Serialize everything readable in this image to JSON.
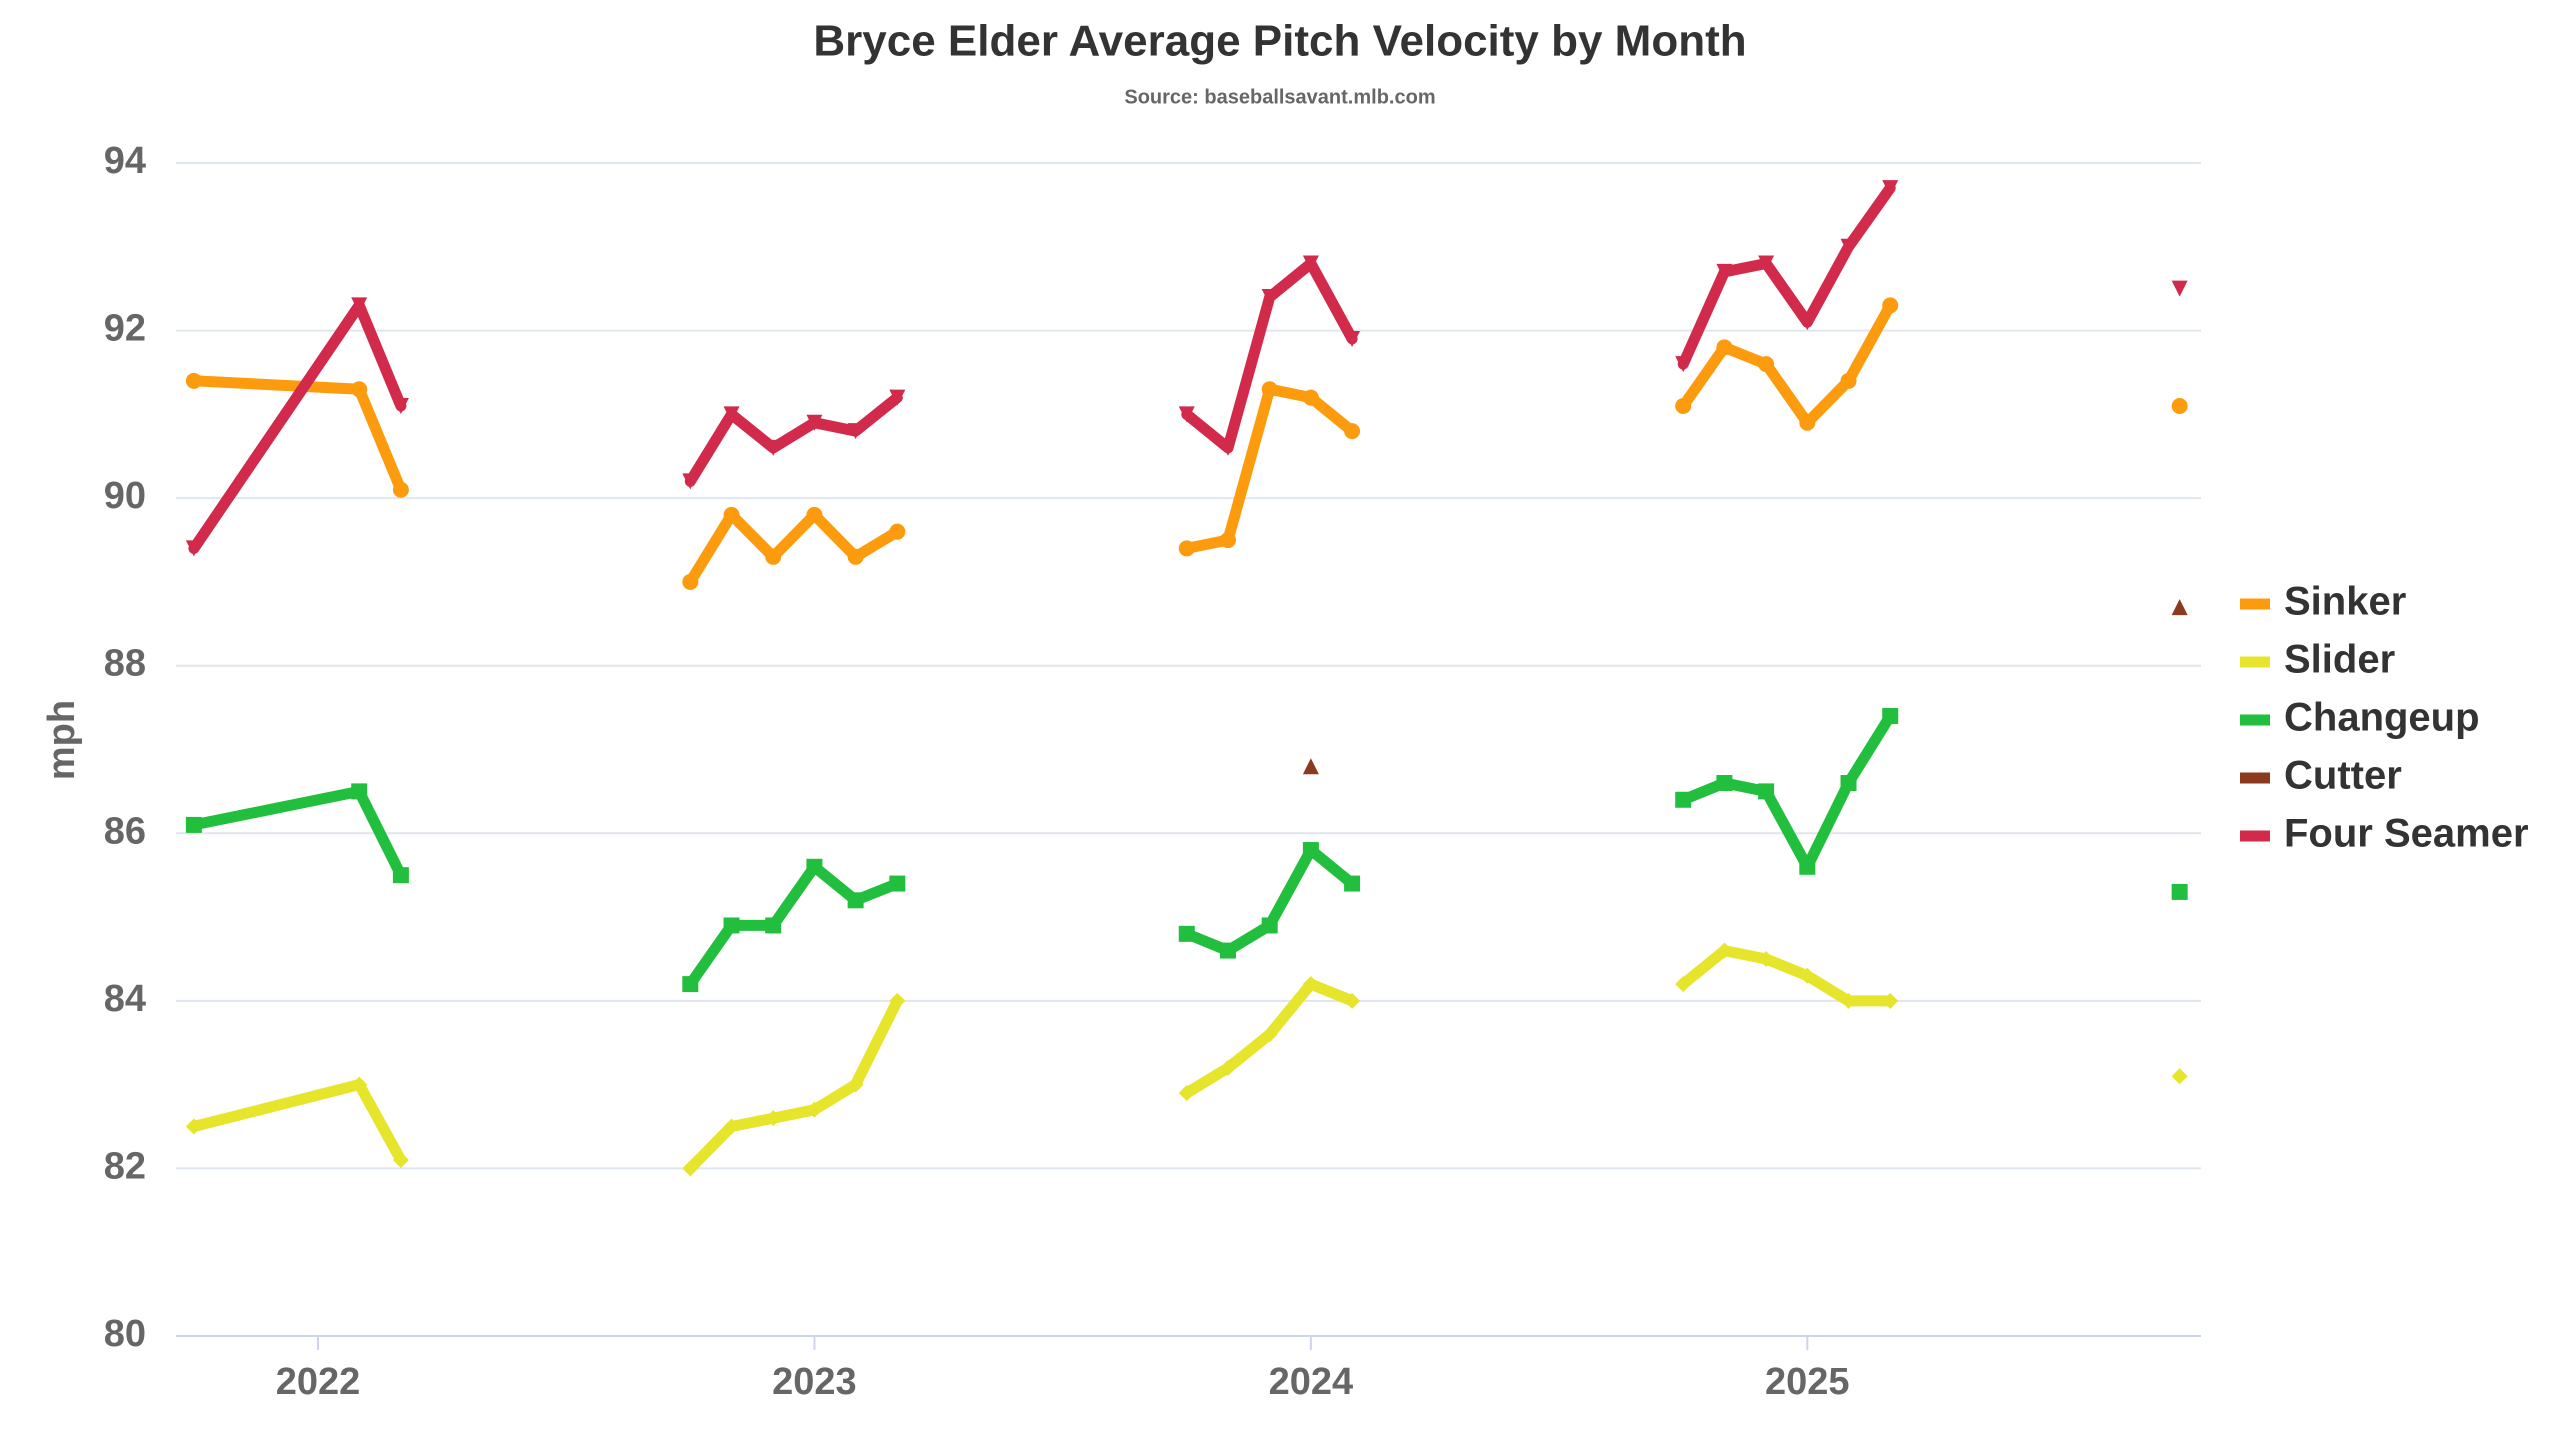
{
  "chart_data": {
    "type": "line",
    "title": "Bryce Elder Average Pitch Velocity by Month",
    "subtitle": "Source: baseballsavant.mlb.com",
    "y_label": "mph",
    "x": [
      2021.75,
      2022.083,
      2022.167,
      2022.75,
      2022.833,
      2022.917,
      2023,
      2023.083,
      2023.167,
      2023.75,
      2023.833,
      2023.917,
      2024,
      2024.083,
      2024.75,
      2024.833,
      2024.917,
      2025,
      2025.083,
      2025.167,
      2025.75
    ],
    "xlim": [
      2021.714,
      2025.793
    ],
    "xticks": [
      2022,
      2023,
      2024,
      2025
    ],
    "ylim": [
      80,
      94
    ],
    "yticks": [
      80,
      82,
      84,
      86,
      88,
      90,
      92,
      94
    ],
    "grid": true,
    "legend": "right",
    "series": [
      {
        "name": "Sinker",
        "color": "#fb9b0d",
        "marker": "circle",
        "values": [
          91.4,
          91.3,
          90.1,
          89.0,
          89.8,
          89.3,
          89.8,
          89.3,
          89.6,
          89.4,
          89.5,
          91.3,
          91.2,
          90.8,
          91.1,
          91.8,
          91.6,
          90.9,
          91.4,
          92.3,
          91.1
        ]
      },
      {
        "name": "Slider",
        "color": "#e7e42c",
        "marker": "diamond",
        "values": [
          82.5,
          83.0,
          82.1,
          82.0,
          82.5,
          82.6,
          82.7,
          83.0,
          84.0,
          82.9,
          83.2,
          83.6,
          84.2,
          84.0,
          84.2,
          84.6,
          84.5,
          84.3,
          84.0,
          84.0,
          83.1
        ]
      },
      {
        "name": "Changeup",
        "color": "#22bf3e",
        "marker": "square",
        "values": [
          86.1,
          86.5,
          85.5,
          84.2,
          84.9,
          84.9,
          85.6,
          85.2,
          85.4,
          84.8,
          84.6,
          84.9,
          85.8,
          85.4,
          86.4,
          86.6,
          86.5,
          85.6,
          86.6,
          87.4,
          85.3
        ]
      },
      {
        "name": "Cutter",
        "color": "#8b3a1f",
        "marker": "triangle",
        "values": [
          null,
          null,
          null,
          null,
          null,
          null,
          null,
          null,
          null,
          null,
          null,
          null,
          86.8,
          null,
          null,
          null,
          null,
          null,
          null,
          null,
          88.7
        ]
      },
      {
        "name": "Four Seamer",
        "color": "#d12a4b",
        "marker": "triangle-down",
        "values": [
          89.4,
          92.3,
          91.1,
          90.2,
          91.0,
          90.6,
          90.9,
          90.8,
          91.2,
          91.0,
          90.6,
          92.4,
          92.8,
          91.9,
          91.6,
          92.7,
          92.8,
          92.1,
          93.0,
          93.7,
          92.5
        ]
      }
    ]
  }
}
